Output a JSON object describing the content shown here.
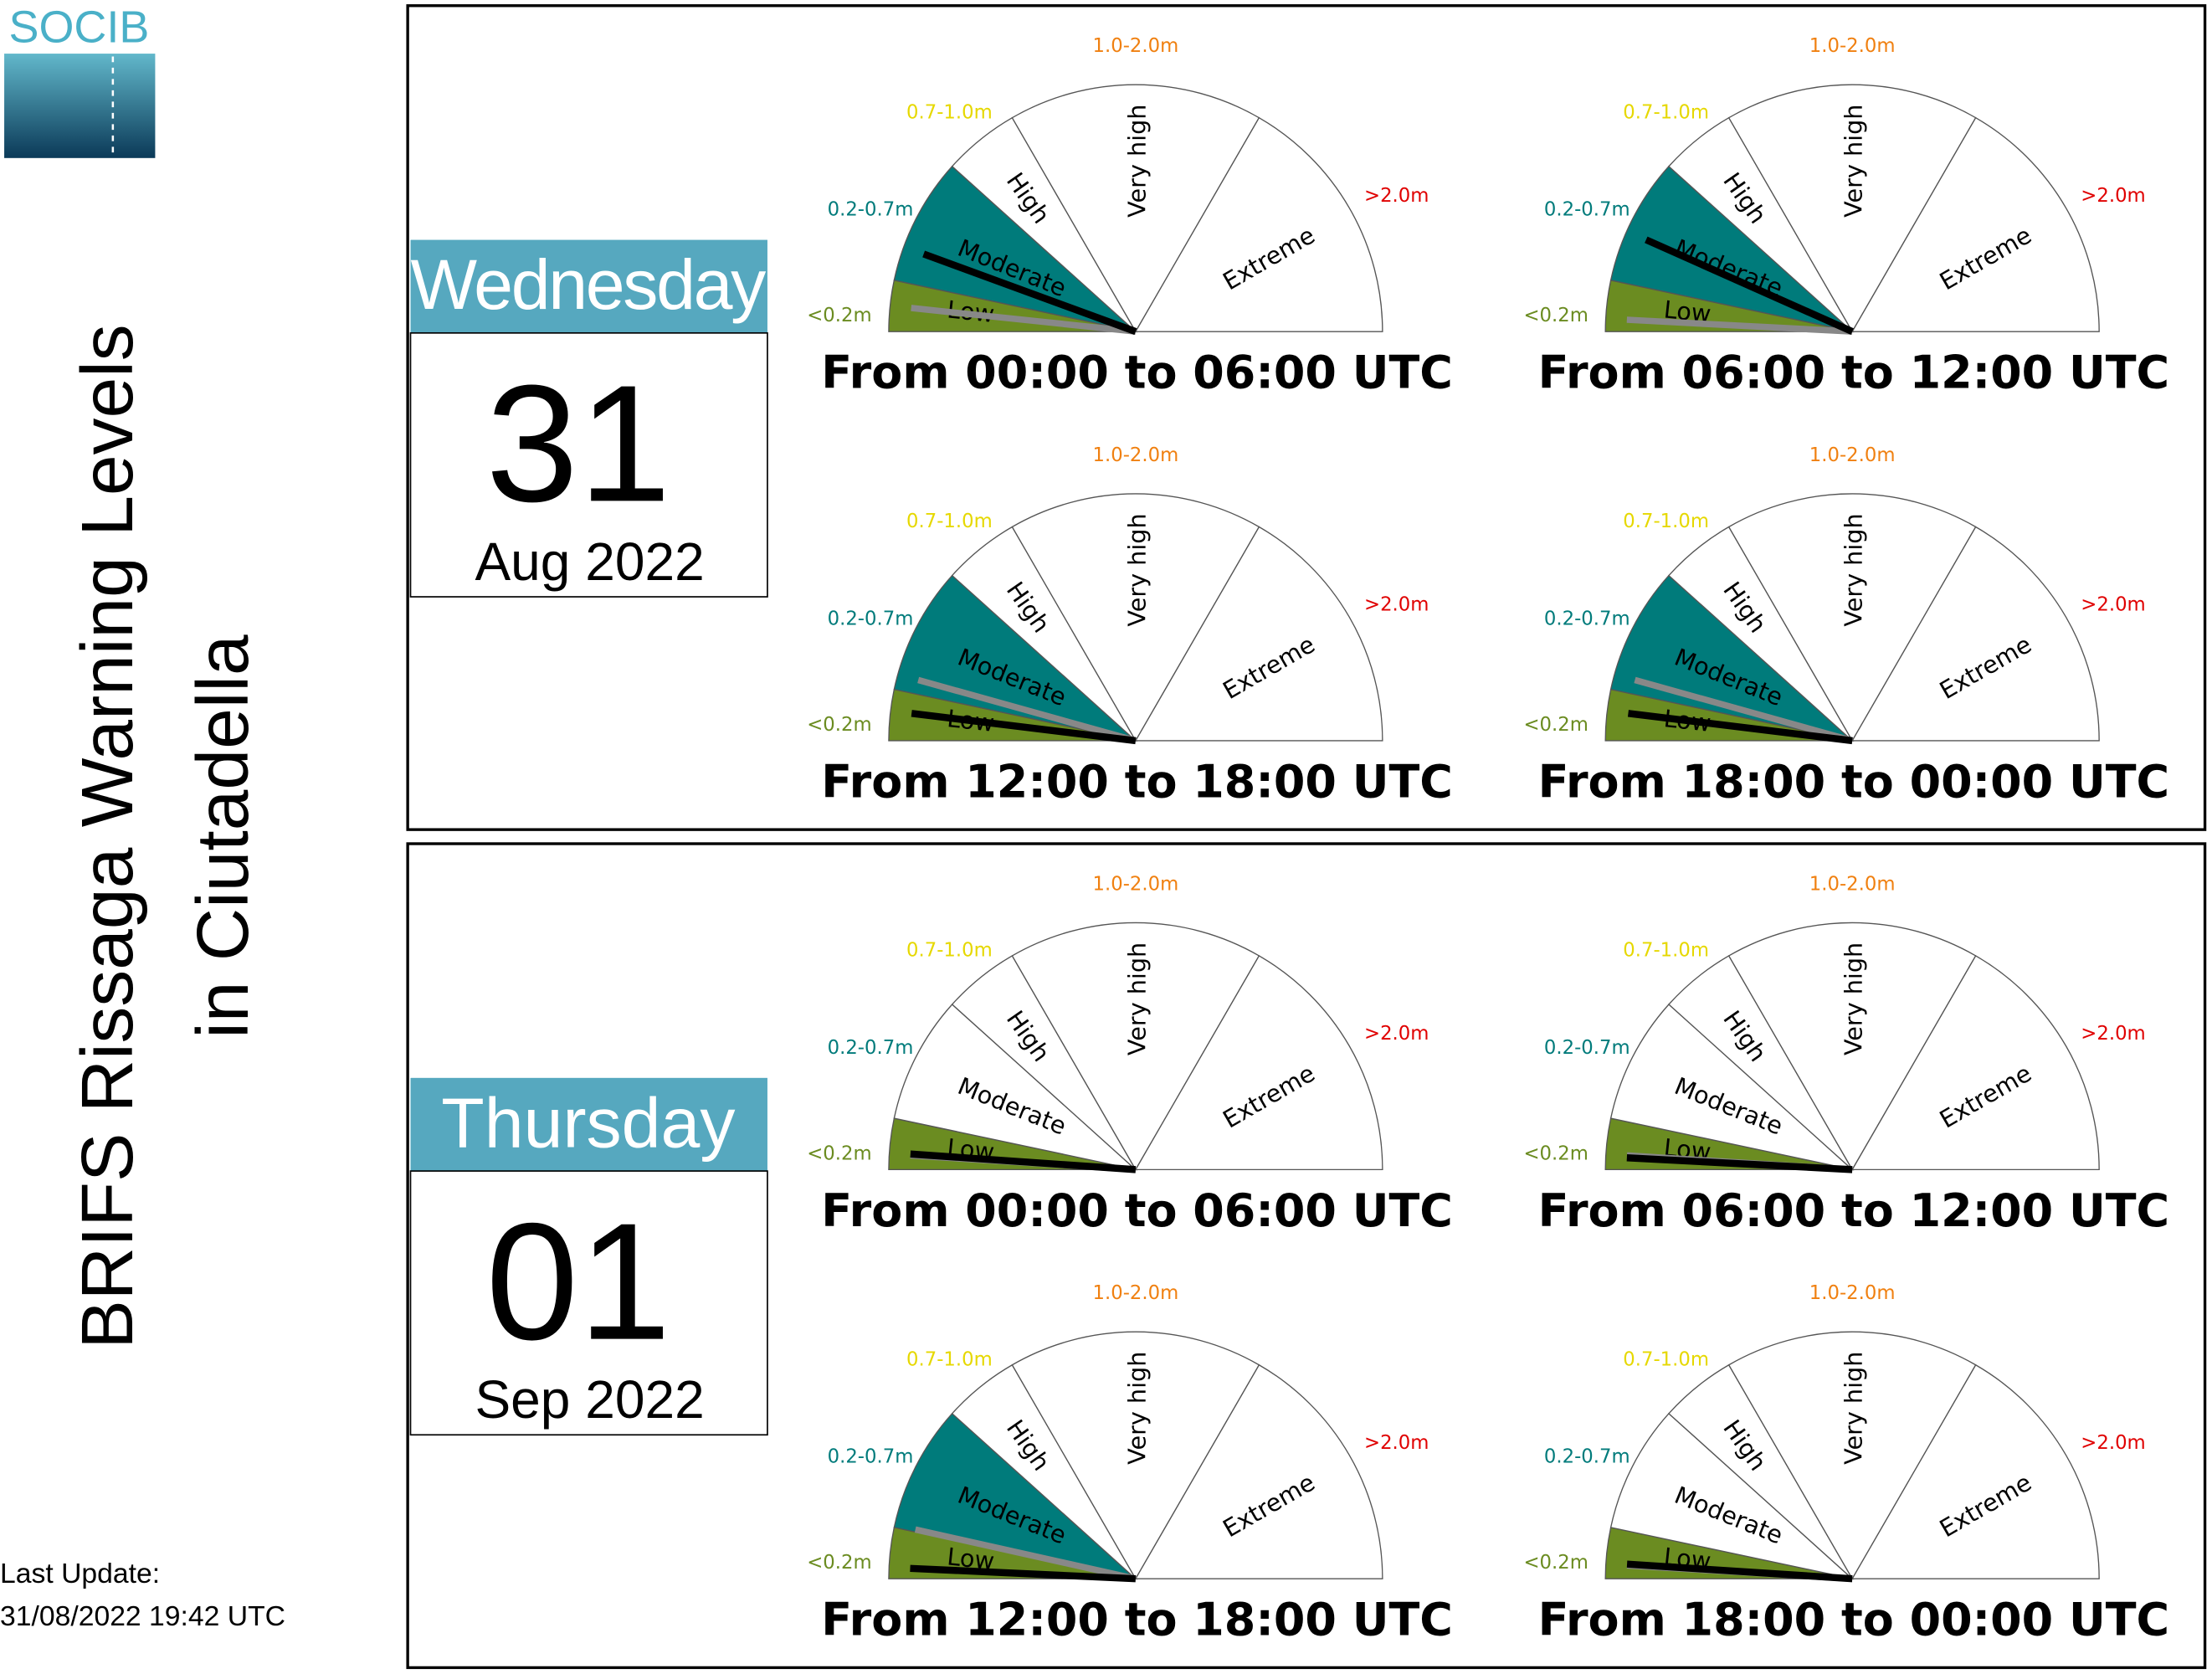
{
  "logo": "SOCIB",
  "title": [
    "BRIFS Rissaga Warning Levels",
    "in Ciutadella"
  ],
  "last_update": [
    "Last Update:",
    "31/08/2022 19:42 UTC"
  ],
  "gauge": {
    "sectors": [
      "Low",
      "Moderate",
      "High",
      "Very high",
      "Extreme"
    ],
    "ranges": [
      {
        "label": "<0.2m",
        "color": "#6b8c21"
      },
      {
        "label": "0.2-0.7m",
        "color": "#007b7b"
      },
      {
        "label": "0.7-1.0m",
        "color": "#e6d800"
      },
      {
        "label": "1.0-2.0m",
        "color": "#f08010"
      },
      {
        "label": ">2.0m",
        "color": "#e00000"
      }
    ],
    "fill_colors": [
      "#6b8c21",
      "#007b7b"
    ]
  },
  "days": [
    {
      "weekday": "Wednesday",
      "day": "31",
      "month_year": "Aug 2022",
      "gauges": [
        {
          "caption": "From 00:00 to 06:00 UTC",
          "needles": [
            {
              "color": "#888888",
              "value": 0.5
            },
            {
              "color": "#000000",
              "value": 1.27
            }
          ]
        },
        {
          "caption": "From 06:00 to 12:00 UTC",
          "needles": [
            {
              "color": "#888888",
              "value": 0.25
            },
            {
              "color": "#000000",
              "value": 1.4
            }
          ]
        },
        {
          "caption": "From 12:00 to 18:00 UTC",
          "needles": [
            {
              "color": "#888888",
              "value": 1.12
            },
            {
              "color": "#000000",
              "value": 0.58
            }
          ]
        },
        {
          "caption": "From 18:00 to 00:00 UTC",
          "needles": [
            {
              "color": "#888888",
              "value": 1.12
            },
            {
              "color": "#000000",
              "value": 0.58
            }
          ]
        }
      ]
    },
    {
      "weekday": "Thursday",
      "day": "01",
      "month_year": "Sep 2022",
      "gauges": [
        {
          "caption": "From 00:00 to 06:00 UTC",
          "needles": [
            {
              "color": "#888888",
              "value": 0.3
            },
            {
              "color": "#000000",
              "value": 0.33
            }
          ]
        },
        {
          "caption": "From 06:00 to 12:00 UTC",
          "needles": [
            {
              "color": "#888888",
              "value": 0.3
            },
            {
              "color": "#000000",
              "value": 0.25
            }
          ]
        },
        {
          "caption": "From 12:00 to 18:00 UTC",
          "needles": [
            {
              "color": "#888888",
              "value": 1.02
            },
            {
              "color": "#000000",
              "value": 0.22
            }
          ]
        },
        {
          "caption": "From 18:00 to 00:00 UTC",
          "needles": [
            {
              "color": "#888888",
              "value": 0.28
            },
            {
              "color": "#000000",
              "value": 0.31
            }
          ]
        }
      ]
    }
  ]
}
